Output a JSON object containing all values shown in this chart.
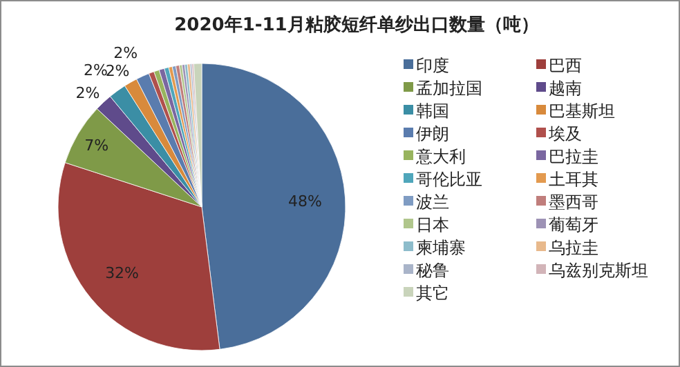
{
  "chart_data": {
    "type": "pie",
    "title": "2020年1-11月粘胶短纤单纱出口数量（吨）",
    "categories": [
      "印度",
      "巴西",
      "孟加拉国",
      "越南",
      "韩国",
      "巴基斯坦",
      "伊朗",
      "埃及",
      "意大利",
      "巴拉圭",
      "哥伦比亚",
      "土耳其",
      "波兰",
      "墨西哥",
      "日本",
      "葡萄牙",
      "柬埔寨",
      "乌拉圭",
      "秘鲁",
      "乌兹别克斯坦",
      "其它"
    ],
    "values": [
      48,
      32,
      7,
      2,
      2,
      1.5,
      1.5,
      0.6,
      0.6,
      0.6,
      0.5,
      0.4,
      0.4,
      0.4,
      0.3,
      0.3,
      0.3,
      0.3,
      0.2,
      0.2,
      0.9
    ],
    "colors": [
      "#4a6e9a",
      "#9e3f3c",
      "#7f9a48",
      "#5f4b8b",
      "#3b8ea5",
      "#d88a3c",
      "#5a7cae",
      "#b0504c",
      "#98b45e",
      "#7a67a0",
      "#4fa6bb",
      "#e39a4f",
      "#7f9cc3",
      "#c07e7c",
      "#b0c68c",
      "#9d92b5",
      "#8dbccb",
      "#e8b98c",
      "#a9b4c9",
      "#d2b4b8",
      "#c9d4bb"
    ],
    "value_labels": [
      "48%",
      "32%",
      "7%",
      "2%",
      "2%",
      "2%",
      "2%",
      null,
      null,
      null,
      null,
      null,
      null,
      null,
      null,
      null,
      null,
      null,
      null,
      null,
      null
    ],
    "legend": "right"
  }
}
